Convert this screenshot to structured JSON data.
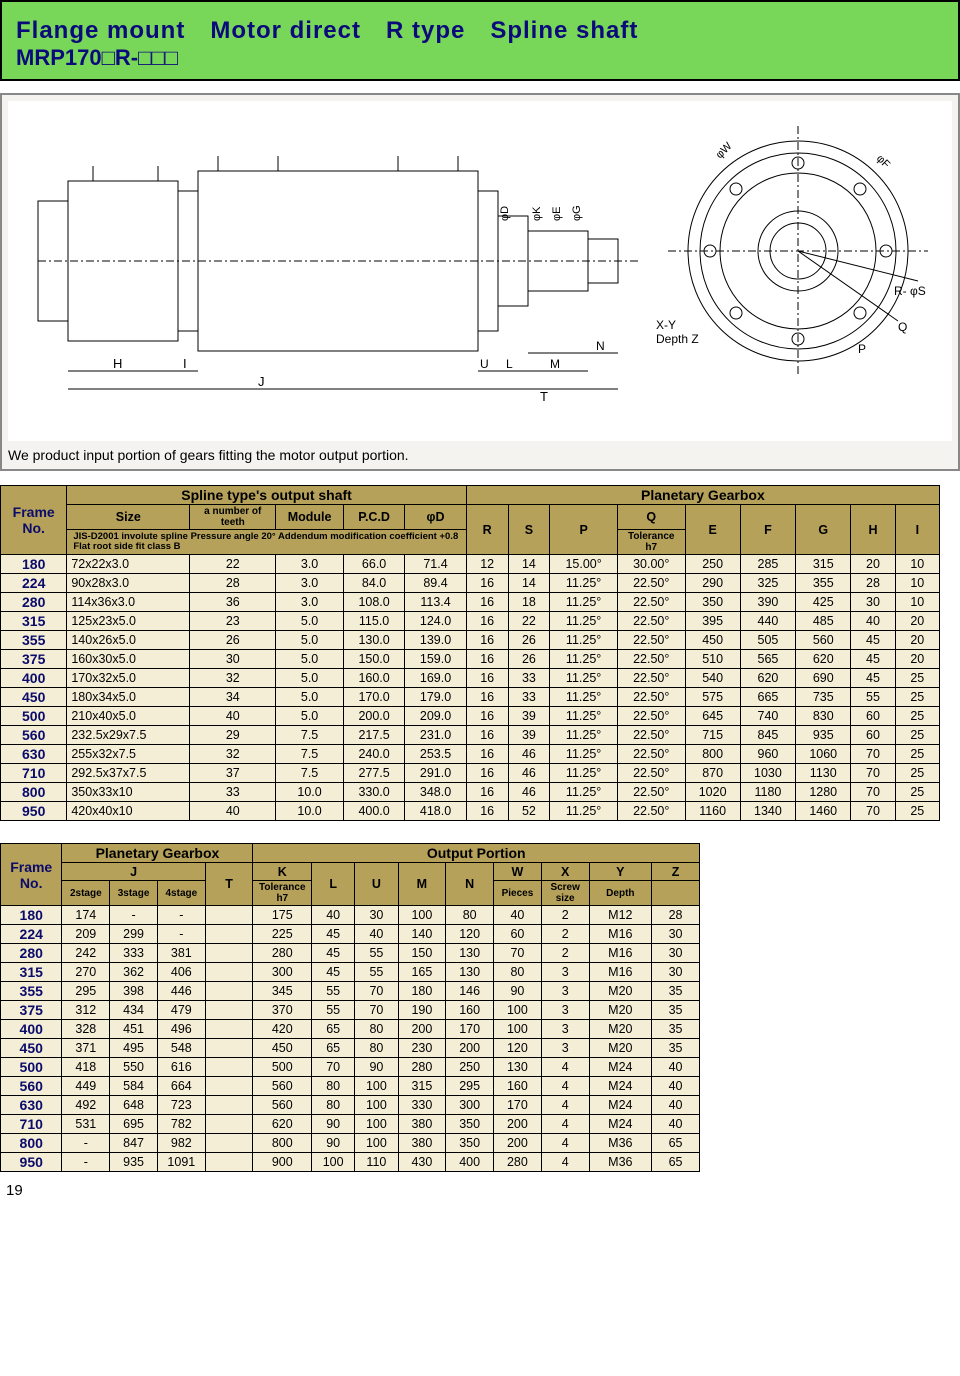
{
  "title_line1": "Flange mount　Motor direct　R type　Spline shaft",
  "title_line2": "MRP170□R-□□□",
  "diagram_caption": "We product input portion of gears fitting the motor output portion.",
  "diagram_labels": {
    "H": "H",
    "I": "I",
    "J": "J",
    "U": "U",
    "L": "L",
    "M": "M",
    "N": "N",
    "T": "T",
    "phiD": "φD",
    "phiK": "K",
    "phiE": "φE",
    "phiG": "φG",
    "phiW": "φW",
    "phiF": "φF",
    "XY": "X-Y",
    "DepthZ": "Depth Z",
    "P": "P",
    "Q": "Q",
    "RphiS": "R- φS"
  },
  "table1": {
    "span_left": "Spline type's output shaft",
    "span_right": "Planetary Gearbox",
    "frame_hdr": "Frame No.",
    "cols_left": [
      "Size",
      "a number of teeth",
      "Module",
      "P.C.D",
      "φD"
    ],
    "cols_right": [
      "R",
      "S",
      "P",
      "Q",
      "E",
      "F",
      "G",
      "H",
      "I"
    ],
    "sub_left": "JIS-D2001 involute spline Pressure angle 20°\nAddendum modification coefficient +0.8 Flat root side fit class B",
    "sub_tol": "Tolerance",
    "sub_h7": "h7",
    "rows": [
      {
        "f": "180",
        "size": "72x22x3.0",
        "teeth": "22",
        "mod": "3.0",
        "pcd": "66.0",
        "phid": "71.4",
        "r": "12",
        "s": "14",
        "p": "15.00°",
        "q": "30.00°",
        "e": "250",
        "f2": "285",
        "g": "315",
        "h": "20",
        "i": "10"
      },
      {
        "f": "224",
        "size": "90x28x3.0",
        "teeth": "28",
        "mod": "3.0",
        "pcd": "84.0",
        "phid": "89.4",
        "r": "16",
        "s": "14",
        "p": "11.25°",
        "q": "22.50°",
        "e": "290",
        "f2": "325",
        "g": "355",
        "h": "28",
        "i": "10"
      },
      {
        "f": "280",
        "size": "114x36x3.0",
        "teeth": "36",
        "mod": "3.0",
        "pcd": "108.0",
        "phid": "113.4",
        "r": "16",
        "s": "18",
        "p": "11.25°",
        "q": "22.50°",
        "e": "350",
        "f2": "390",
        "g": "425",
        "h": "30",
        "i": "10"
      },
      {
        "f": "315",
        "size": "125x23x5.0",
        "teeth": "23",
        "mod": "5.0",
        "pcd": "115.0",
        "phid": "124.0",
        "r": "16",
        "s": "22",
        "p": "11.25°",
        "q": "22.50°",
        "e": "395",
        "f2": "440",
        "g": "485",
        "h": "40",
        "i": "20"
      },
      {
        "f": "355",
        "size": "140x26x5.0",
        "teeth": "26",
        "mod": "5.0",
        "pcd": "130.0",
        "phid": "139.0",
        "r": "16",
        "s": "26",
        "p": "11.25°",
        "q": "22.50°",
        "e": "450",
        "f2": "505",
        "g": "560",
        "h": "45",
        "i": "20"
      },
      {
        "f": "375",
        "size": "160x30x5.0",
        "teeth": "30",
        "mod": "5.0",
        "pcd": "150.0",
        "phid": "159.0",
        "r": "16",
        "s": "26",
        "p": "11.25°",
        "q": "22.50°",
        "e": "510",
        "f2": "565",
        "g": "620",
        "h": "45",
        "i": "20"
      },
      {
        "f": "400",
        "size": "170x32x5.0",
        "teeth": "32",
        "mod": "5.0",
        "pcd": "160.0",
        "phid": "169.0",
        "r": "16",
        "s": "33",
        "p": "11.25°",
        "q": "22.50°",
        "e": "540",
        "f2": "620",
        "g": "690",
        "h": "45",
        "i": "25"
      },
      {
        "f": "450",
        "size": "180x34x5.0",
        "teeth": "34",
        "mod": "5.0",
        "pcd": "170.0",
        "phid": "179.0",
        "r": "16",
        "s": "33",
        "p": "11.25°",
        "q": "22.50°",
        "e": "575",
        "f2": "665",
        "g": "735",
        "h": "55",
        "i": "25"
      },
      {
        "f": "500",
        "size": "210x40x5.0",
        "teeth": "40",
        "mod": "5.0",
        "pcd": "200.0",
        "phid": "209.0",
        "r": "16",
        "s": "39",
        "p": "11.25°",
        "q": "22.50°",
        "e": "645",
        "f2": "740",
        "g": "830",
        "h": "60",
        "i": "25"
      },
      {
        "f": "560",
        "size": "232.5x29x7.5",
        "teeth": "29",
        "mod": "7.5",
        "pcd": "217.5",
        "phid": "231.0",
        "r": "16",
        "s": "39",
        "p": "11.25°",
        "q": "22.50°",
        "e": "715",
        "f2": "845",
        "g": "935",
        "h": "60",
        "i": "25"
      },
      {
        "f": "630",
        "size": "255x32x7.5",
        "teeth": "32",
        "mod": "7.5",
        "pcd": "240.0",
        "phid": "253.5",
        "r": "16",
        "s": "46",
        "p": "11.25°",
        "q": "22.50°",
        "e": "800",
        "f2": "960",
        "g": "1060",
        "h": "70",
        "i": "25"
      },
      {
        "f": "710",
        "size": "292.5x37x7.5",
        "teeth": "37",
        "mod": "7.5",
        "pcd": "277.5",
        "phid": "291.0",
        "r": "16",
        "s": "46",
        "p": "11.25°",
        "q": "22.50°",
        "e": "870",
        "f2": "1030",
        "g": "1130",
        "h": "70",
        "i": "25"
      },
      {
        "f": "800",
        "size": "350x33x10",
        "teeth": "33",
        "mod": "10.0",
        "pcd": "330.0",
        "phid": "348.0",
        "r": "16",
        "s": "46",
        "p": "11.25°",
        "q": "22.50°",
        "e": "1020",
        "f2": "1180",
        "g": "1280",
        "h": "70",
        "i": "25"
      },
      {
        "f": "950",
        "size": "420x40x10",
        "teeth": "40",
        "mod": "10.0",
        "pcd": "400.0",
        "phid": "418.0",
        "r": "16",
        "s": "52",
        "p": "11.25°",
        "q": "22.50°",
        "e": "1160",
        "f2": "1340",
        "g": "1460",
        "h": "70",
        "i": "25"
      }
    ]
  },
  "table2": {
    "span_left": "Planetary Gearbox",
    "span_right": "Output Portion",
    "frame_hdr": "Frame No.",
    "j_label": "J",
    "t_label": "T",
    "j_subs": [
      "2stage",
      "3stage",
      "4stage"
    ],
    "k_label": "K",
    "k_sub": "Tolerance",
    "k_h7": "h7",
    "cols_right": [
      "L",
      "U",
      "M",
      "N",
      "W",
      "X",
      "Y",
      "Z"
    ],
    "w_sub": "Pieces",
    "x_sub": "Screw size",
    "y_sub": "Depth",
    "rows": [
      {
        "f": "180",
        "j2": "174",
        "j3": "-",
        "j4": "-",
        "t": "",
        "k": "175",
        "l": "40",
        "u": "30",
        "m": "100",
        "n": "80",
        "w": "40",
        "x": "2",
        "y": "M12",
        "z": "28"
      },
      {
        "f": "224",
        "j2": "209",
        "j3": "299",
        "j4": "-",
        "t": "",
        "k": "225",
        "l": "45",
        "u": "40",
        "m": "140",
        "n": "120",
        "w": "60",
        "x": "2",
        "y": "M16",
        "z": "30"
      },
      {
        "f": "280",
        "j2": "242",
        "j3": "333",
        "j4": "381",
        "t": "",
        "k": "280",
        "l": "45",
        "u": "55",
        "m": "150",
        "n": "130",
        "w": "70",
        "x": "2",
        "y": "M16",
        "z": "30"
      },
      {
        "f": "315",
        "j2": "270",
        "j3": "362",
        "j4": "406",
        "t": "",
        "k": "300",
        "l": "45",
        "u": "55",
        "m": "165",
        "n": "130",
        "w": "80",
        "x": "3",
        "y": "M16",
        "z": "30"
      },
      {
        "f": "355",
        "j2": "295",
        "j3": "398",
        "j4": "446",
        "t": "",
        "k": "345",
        "l": "55",
        "u": "70",
        "m": "180",
        "n": "146",
        "w": "90",
        "x": "3",
        "y": "M20",
        "z": "35"
      },
      {
        "f": "375",
        "j2": "312",
        "j3": "434",
        "j4": "479",
        "t": "",
        "k": "370",
        "l": "55",
        "u": "70",
        "m": "190",
        "n": "160",
        "w": "100",
        "x": "3",
        "y": "M20",
        "z": "35"
      },
      {
        "f": "400",
        "j2": "328",
        "j3": "451",
        "j4": "496",
        "t": "",
        "k": "420",
        "l": "65",
        "u": "80",
        "m": "200",
        "n": "170",
        "w": "100",
        "x": "3",
        "y": "M20",
        "z": "35"
      },
      {
        "f": "450",
        "j2": "371",
        "j3": "495",
        "j4": "548",
        "t": "",
        "k": "450",
        "l": "65",
        "u": "80",
        "m": "230",
        "n": "200",
        "w": "120",
        "x": "3",
        "y": "M20",
        "z": "35"
      },
      {
        "f": "500",
        "j2": "418",
        "j3": "550",
        "j4": "616",
        "t": "",
        "k": "500",
        "l": "70",
        "u": "90",
        "m": "280",
        "n": "250",
        "w": "130",
        "x": "4",
        "y": "M24",
        "z": "40"
      },
      {
        "f": "560",
        "j2": "449",
        "j3": "584",
        "j4": "664",
        "t": "",
        "k": "560",
        "l": "80",
        "u": "100",
        "m": "315",
        "n": "295",
        "w": "160",
        "x": "4",
        "y": "M24",
        "z": "40"
      },
      {
        "f": "630",
        "j2": "492",
        "j3": "648",
        "j4": "723",
        "t": "",
        "k": "560",
        "l": "80",
        "u": "100",
        "m": "330",
        "n": "300",
        "w": "170",
        "x": "4",
        "y": "M24",
        "z": "40"
      },
      {
        "f": "710",
        "j2": "531",
        "j3": "695",
        "j4": "782",
        "t": "",
        "k": "620",
        "l": "90",
        "u": "100",
        "m": "380",
        "n": "350",
        "w": "200",
        "x": "4",
        "y": "M24",
        "z": "40"
      },
      {
        "f": "800",
        "j2": "-",
        "j3": "847",
        "j4": "982",
        "t": "",
        "k": "800",
        "l": "90",
        "u": "100",
        "m": "380",
        "n": "350",
        "w": "200",
        "x": "4",
        "y": "M36",
        "z": "65"
      },
      {
        "f": "950",
        "j2": "-",
        "j3": "935",
        "j4": "1091",
        "t": "",
        "k": "900",
        "l": "100",
        "u": "110",
        "m": "430",
        "n": "400",
        "w": "280",
        "x": "4",
        "y": "M36",
        "z": "65"
      }
    ]
  },
  "page_number": "19"
}
